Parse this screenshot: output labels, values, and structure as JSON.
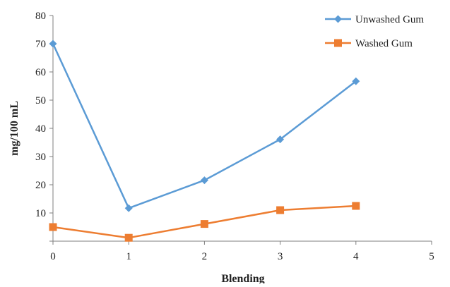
{
  "chart_data": {
    "type": "line",
    "title": "",
    "xlabel": "Blending",
    "ylabel": "mg/100 mL",
    "xlim": [
      0,
      5
    ],
    "ylim": [
      0,
      80
    ],
    "x_ticks": [
      "0",
      "1",
      "2",
      "3",
      "4",
      "5"
    ],
    "y_ticks": [
      "80",
      "70",
      "60",
      "50",
      "40",
      "30",
      "20",
      "10",
      ""
    ],
    "grid": false,
    "legend_position": "top-right",
    "series": [
      {
        "name": "Unwashed Gum",
        "color": "#5b9bd5",
        "marker": "diamond",
        "x": [
          0,
          1,
          2,
          3,
          4
        ],
        "y": [
          70,
          11.7,
          21.6,
          36.1,
          56.7
        ]
      },
      {
        "name": "Washed Gum",
        "color": "#ed7d31",
        "marker": "square",
        "x": [
          0,
          1,
          2,
          3,
          4
        ],
        "y": [
          5,
          1.2,
          6.1,
          11,
          12.5
        ]
      }
    ]
  }
}
